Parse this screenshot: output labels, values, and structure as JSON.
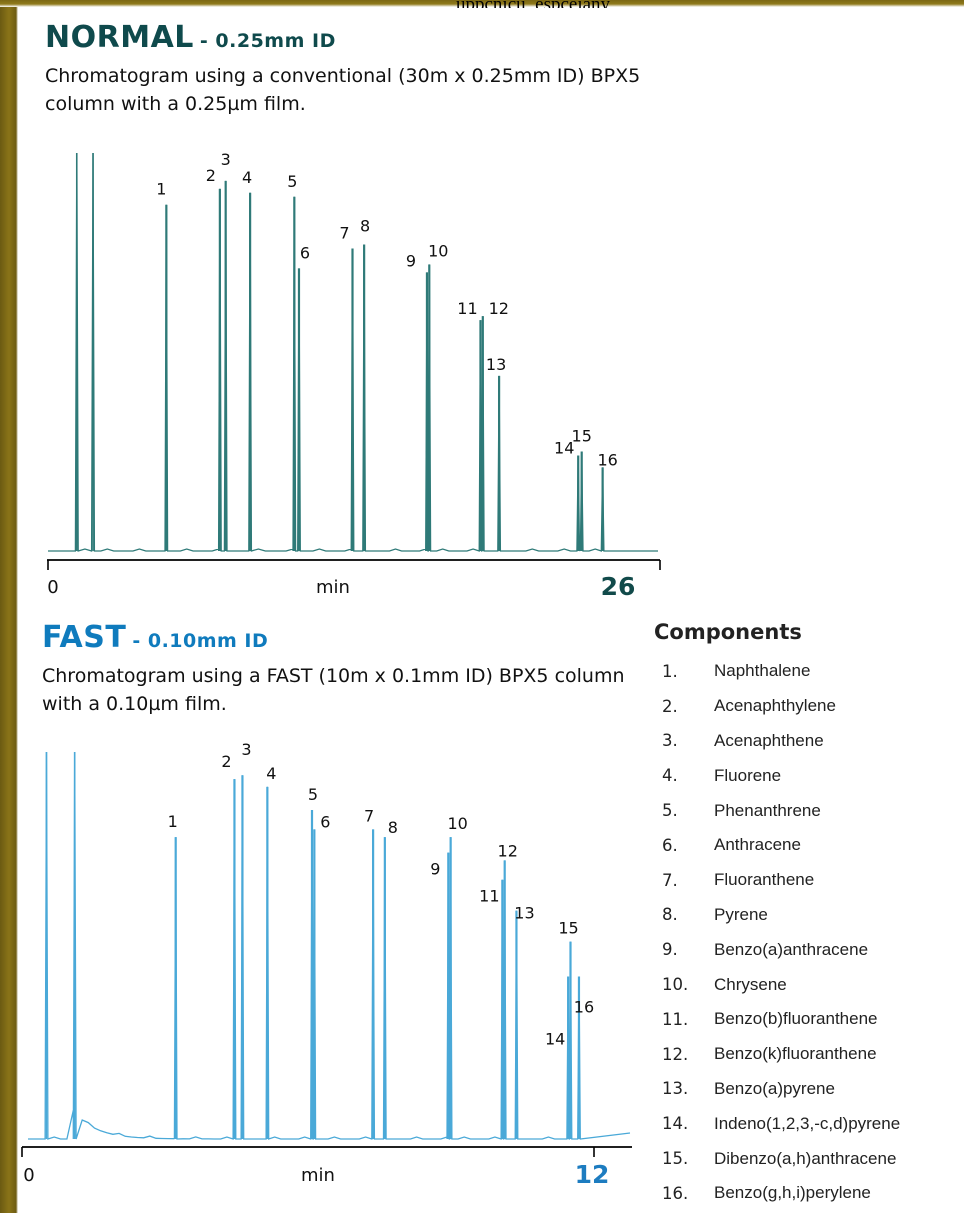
{
  "top_clipped_text": "uppcnicu, espceiany",
  "normal": {
    "title": "NORMAL",
    "subtitle": "- 0.25mm ID",
    "description": "Chromatogram using a conventional (30m x 0.25mm ID) BPX5 column with a 0.25µm film."
  },
  "fast": {
    "title": "FAST",
    "subtitle": "- 0.10mm ID",
    "description": "Chromatogram using a FAST (10m x 0.1mm ID) BPX5 column with a 0.10µm film."
  },
  "components": {
    "title": "Components",
    "items": [
      {
        "num": "1.",
        "name": "Naphthalene"
      },
      {
        "num": "2.",
        "name": "Acenaphthylene"
      },
      {
        "num": "3.",
        "name": "Acenaphthene"
      },
      {
        "num": "4.",
        "name": "Fluorene"
      },
      {
        "num": "5.",
        "name": "Phenanthrene"
      },
      {
        "num": "6.",
        "name": "Anthracene"
      },
      {
        "num": "7.",
        "name": "Fluoranthene"
      },
      {
        "num": "8.",
        "name": "Pyrene"
      },
      {
        "num": "9.",
        "name": "Benzo(a)anthracene"
      },
      {
        "num": "10.",
        "name": "Chrysene"
      },
      {
        "num": "11.",
        "name": "Benzo(b)fluoranthene"
      },
      {
        "num": "12.",
        "name": "Benzo(k)fluoranthene"
      },
      {
        "num": "13.",
        "name": "Benzo(a)pyrene"
      },
      {
        "num": "14.",
        "name": "Indeno(1,2,3,-c,d)pyrene"
      },
      {
        "num": "15.",
        "name": "Dibenzo(a,h)anthracene"
      },
      {
        "num": "16.",
        "name": "Benzo(g,h,i)perylene"
      }
    ]
  },
  "chart_data": [
    {
      "type": "line",
      "title": "NORMAL - 0.25mm ID",
      "xlabel": "min",
      "xlim": [
        0,
        26
      ],
      "x_tick_labels": [
        "0",
        "26"
      ],
      "color": "#2f7a78",
      "solvent_peaks": [
        {
          "rt": 1.15,
          "height": 1.0
        },
        {
          "rt": 1.85,
          "height": 1.0
        }
      ],
      "peaks": [
        {
          "label": "1",
          "rt": 5.0,
          "height": 0.87
        },
        {
          "label": "2",
          "rt": 7.3,
          "height": 0.91
        },
        {
          "label": "3",
          "rt": 7.55,
          "height": 0.93
        },
        {
          "label": "4",
          "rt": 8.6,
          "height": 0.9
        },
        {
          "label": "5",
          "rt": 10.5,
          "height": 0.89
        },
        {
          "label": "6",
          "rt": 10.7,
          "height": 0.71
        },
        {
          "label": "7",
          "rt": 13.0,
          "height": 0.76
        },
        {
          "label": "8",
          "rt": 13.5,
          "height": 0.77
        },
        {
          "label": "9",
          "rt": 16.2,
          "height": 0.7
        },
        {
          "label": "10",
          "rt": 16.3,
          "height": 0.72
        },
        {
          "label": "11",
          "rt": 18.5,
          "height": 0.58
        },
        {
          "label": "12",
          "rt": 18.6,
          "height": 0.59
        },
        {
          "label": "13",
          "rt": 19.3,
          "height": 0.44
        },
        {
          "label": "14",
          "rt": 22.7,
          "height": 0.24
        },
        {
          "label": "15",
          "rt": 22.85,
          "height": 0.25
        },
        {
          "label": "16",
          "rt": 23.75,
          "height": 0.21
        }
      ]
    },
    {
      "type": "line",
      "title": "FAST - 0.10mm ID",
      "xlabel": "min",
      "xlim": [
        0,
        12
      ],
      "x_tick_labels": [
        "0",
        "12"
      ],
      "color": "#4aa9d8",
      "solvent_peaks": [
        {
          "rt": 0.35,
          "height": 1.0
        },
        {
          "rt": 0.95,
          "height": 1.0
        }
      ],
      "peaks": [
        {
          "label": "1",
          "rt": 3.1,
          "height": 0.78
        },
        {
          "label": "2",
          "rt": 4.35,
          "height": 0.93
        },
        {
          "label": "3",
          "rt": 4.52,
          "height": 0.94
        },
        {
          "label": "4",
          "rt": 5.05,
          "height": 0.91
        },
        {
          "label": "5",
          "rt": 6.0,
          "height": 0.85
        },
        {
          "label": "6",
          "rt": 6.05,
          "height": 0.8
        },
        {
          "label": "7",
          "rt": 7.3,
          "height": 0.8
        },
        {
          "label": "8",
          "rt": 7.55,
          "height": 0.78
        },
        {
          "label": "9",
          "rt": 8.9,
          "height": 0.74
        },
        {
          "label": "10",
          "rt": 8.95,
          "height": 0.78
        },
        {
          "label": "11",
          "rt": 10.05,
          "height": 0.67
        },
        {
          "label": "12",
          "rt": 10.1,
          "height": 0.72
        },
        {
          "label": "13",
          "rt": 10.35,
          "height": 0.59
        },
        {
          "label": "14",
          "rt": 11.45,
          "height": 0.42
        },
        {
          "label": "15",
          "rt": 11.5,
          "height": 0.51
        },
        {
          "label": "16",
          "rt": 11.68,
          "height": 0.42
        }
      ]
    }
  ]
}
